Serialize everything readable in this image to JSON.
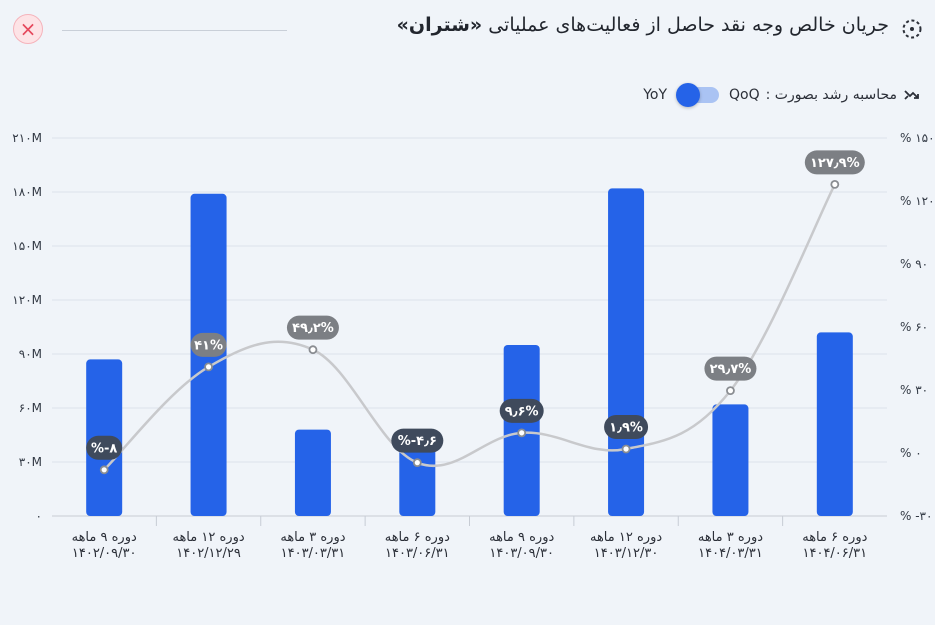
{
  "header": {
    "title_prefix": "جریان خالص وجه نقد حاصل از فعالیت‌های عملیاتی",
    "title_symbol": "«شتران»",
    "close_glyph": "×"
  },
  "growth_toggle": {
    "label": "محاسبه رشد بصورت :",
    "left_option": "YoY",
    "right_option": "QoQ",
    "selected": "YoY"
  },
  "colors": {
    "bar": "#2563e8",
    "line": "#c8c9cc",
    "bubble_dark": "#3f4a5c",
    "bubble_gray": "#7c7f84",
    "grid": "#dde2ea",
    "accent": "#2563e8",
    "close": "#e5485c"
  },
  "chart_data": {
    "type": "bar",
    "categories": [
      [
        "دوره ۹ ماهه",
        "۱۴۰۲/۰۹/۳۰"
      ],
      [
        "دوره ۱۲ ماهه",
        "۱۴۰۲/۱۲/۲۹"
      ],
      [
        "دوره ۳ ماهه",
        "۱۴۰۳/۰۳/۳۱"
      ],
      [
        "دوره ۶ ماهه",
        "۱۴۰۳/۰۶/۳۱"
      ],
      [
        "دوره ۹ ماهه",
        "۱۴۰۳/۰۹/۳۰"
      ],
      [
        "دوره ۱۲ ماهه",
        "۱۴۰۳/۱۲/۳۰"
      ],
      [
        "دوره ۳ ماهه",
        "۱۴۰۴/۰۳/۳۱"
      ],
      [
        "دوره ۶ ماهه",
        "۱۴۰۴/۰۶/۳۱"
      ]
    ],
    "series": [
      {
        "type": "bar",
        "values": [
          87,
          179,
          48,
          45,
          95,
          182,
          62,
          102
        ],
        "unit": "M"
      },
      {
        "type": "line",
        "values": [
          -8,
          41,
          49.2,
          -4.6,
          9.6,
          1.9,
          29.7,
          127.9
        ],
        "labels": [
          "%-۸",
          "۴۱%",
          "۴۹٫۲%",
          "%-۴٫۶",
          "۹٫۶%",
          "۱٫۹%",
          "۲۹٫۷%",
          "۱۲۷٫۹%"
        ]
      }
    ],
    "y_left": {
      "ylim": [
        0,
        210
      ],
      "ticks": [
        "۰",
        "۳۰M",
        "۶۰M",
        "۹۰M",
        "۱۲۰M",
        "۱۵۰M",
        "۱۸۰M",
        "۲۱۰M"
      ]
    },
    "y_right": {
      "ylim": [
        -30,
        150
      ],
      "ticks": [
        "% -۳۰",
        "% ۰",
        "% ۳۰",
        "% ۶۰",
        "% ۹۰",
        "% ۱۲۰",
        "% ۱۵۰"
      ]
    },
    "grid": true
  }
}
